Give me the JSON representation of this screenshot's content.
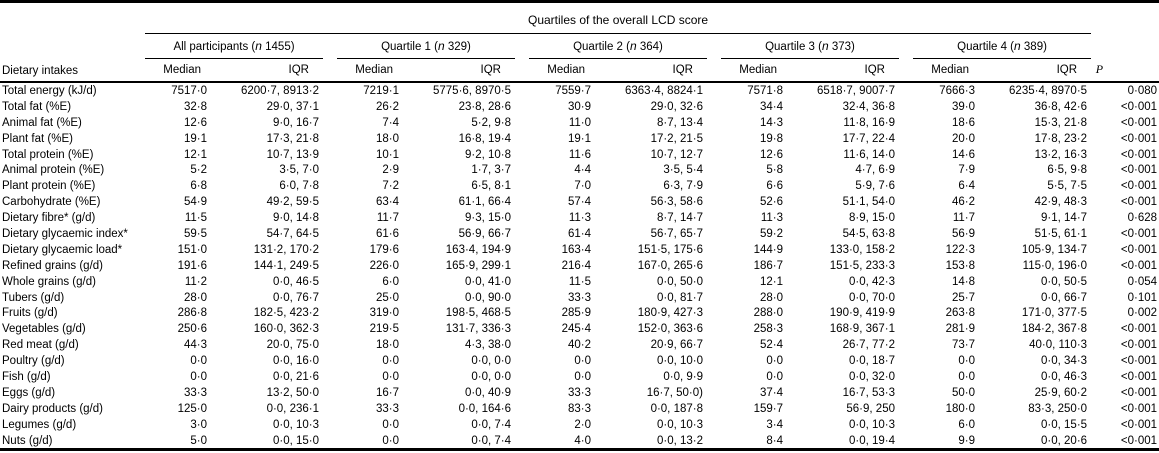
{
  "page": {
    "background": "#ffffff",
    "text_color": "#000000",
    "rule_color": "#000000"
  },
  "table": {
    "spanning_header": "Quartiles of the overall LCD score",
    "corner_header": "Dietary intakes",
    "subheader_median": "Median",
    "subheader_iqr": "IQR",
    "p_header": "P",
    "groups": [
      {
        "pre": "All participants (",
        "n": "n",
        "post": " 1455)"
      },
      {
        "pre": "Quartile 1 (",
        "n": "n",
        "post": " 329)"
      },
      {
        "pre": "Quartile 2 (",
        "n": "n",
        "post": " 364)"
      },
      {
        "pre": "Quartile 3 (",
        "n": "n",
        "post": " 373)"
      },
      {
        "pre": "Quartile 4 (",
        "n": "n",
        "post": " 389)"
      }
    ],
    "rows": [
      {
        "label": "Total energy (kJ/d)",
        "values": [
          "7517·0",
          "6200·7, 8913·2",
          "7219·1",
          "5775·6, 8970·5",
          "7559·7",
          "6363·4, 8824·1",
          "7571·8",
          "6518·7, 9007·7",
          "7666·3",
          "6235·4, 8970·5"
        ],
        "p": "0·080"
      },
      {
        "label": "Total fat (%E)",
        "values": [
          "32·8",
          "29·0, 37·1",
          "26·2",
          "23·8, 28·6",
          "30·9",
          "29·0, 32·6",
          "34·4",
          "32·4, 36·8",
          "39·0",
          "36·8, 42·6"
        ],
        "p": "<0·001"
      },
      {
        "label": "Animal fat (%E)",
        "values": [
          "12·6",
          "9·0, 16·7",
          "7·4",
          "5·2, 9·8",
          "11·0",
          "8·7, 13·4",
          "14·3",
          "11·8, 16·9",
          "18·6",
          "15·3, 21·8"
        ],
        "p": "<0·001"
      },
      {
        "label": "Plant fat (%E)",
        "values": [
          "19·1",
          "17·3, 21·8",
          "18·0",
          "16·8, 19·4",
          "19·1",
          "17·2, 21·5",
          "19·8",
          "17·7, 22·4",
          "20·0",
          "17·8, 23·2"
        ],
        "p": "<0·001"
      },
      {
        "label": "Total protein (%E)",
        "values": [
          "12·1",
          "10·7, 13·9",
          "10·1",
          "9·2, 10·8",
          "11·6",
          "10·7, 12·7",
          "12·6",
          "11·6, 14·0",
          "14·6",
          "13·2, 16·3"
        ],
        "p": "<0·001"
      },
      {
        "label": "Animal protein (%E)",
        "values": [
          "5·2",
          "3·5, 7·0",
          "2·9",
          "1·7, 3·7",
          "4·4",
          "3·5, 5·4",
          "5·8",
          "4·7, 6·9",
          "7·9",
          "6·5, 9·8"
        ],
        "p": "<0·001"
      },
      {
        "label": "Plant protein (%E)",
        "values": [
          "6·8",
          "6·0, 7·8",
          "7·2",
          "6·5, 8·1",
          "7·0",
          "6·3, 7·9",
          "6·6",
          "5·9, 7·6",
          "6·4",
          "5·5, 7·5"
        ],
        "p": "<0·001"
      },
      {
        "label": "Carbohydrate (%E)",
        "values": [
          "54·9",
          "49·2, 59·5",
          "63·4",
          "61·1, 66·4",
          "57·4",
          "56·3, 58·6",
          "52·6",
          "51·1, 54·0",
          "46·2",
          "42·9, 48·3"
        ],
        "p": "<0·001"
      },
      {
        "label": "Dietary fibre* (g/d)",
        "values": [
          "11·5",
          "9·0, 14·8",
          "11·7",
          "9·3, 15·0",
          "11·3",
          "8·7, 14·7",
          "11·3",
          "8·9, 15·0",
          "11·7",
          "9·1, 14·7"
        ],
        "p": "0·628"
      },
      {
        "label": "Dietary glycaemic index*",
        "values": [
          "59·5",
          "54·7, 64·5",
          "61·6",
          "56·9, 66·7",
          "61·4",
          "56·7, 65·7",
          "59·2",
          "54·5, 63·8",
          "56·9",
          "51·5, 61·1"
        ],
        "p": "<0·001"
      },
      {
        "label": "Dietary glycaemic load*",
        "values": [
          "151·0",
          "131·2, 170·2",
          "179·6",
          "163·4, 194·9",
          "163·4",
          "151·5, 175·6",
          "144·9",
          "133·0, 158·2",
          "122·3",
          "105·9, 134·7"
        ],
        "p": "<0·001"
      },
      {
        "label": "Refined grains (g/d)",
        "values": [
          "191·6",
          "144·1, 249·5",
          "226·0",
          "165·9, 299·1",
          "216·4",
          "167·0, 265·6",
          "186·7",
          "151·5, 233·3",
          "153·8",
          "115·0, 196·0"
        ],
        "p": "<0·001"
      },
      {
        "label": "Whole grains (g/d)",
        "values": [
          "11·2",
          "0·0, 46·5",
          "6·0",
          "0·0, 41·0",
          "11·5",
          "0·0, 50·0",
          "12·1",
          "0·0, 42·3",
          "14·8",
          "0·0, 50·5"
        ],
        "p": "0·054"
      },
      {
        "label": "Tubers (g/d)",
        "values": [
          "28·0",
          "0·0, 76·7",
          "25·0",
          "0·0, 90·0",
          "33·3",
          "0·0, 81·7",
          "28·0",
          "0·0, 70·0",
          "25·7",
          "0·0, 66·7"
        ],
        "p": "0·101"
      },
      {
        "label": "Fruits (g/d)",
        "values": [
          "286·8",
          "182·5, 423·2",
          "319·0",
          "198·5, 468·5",
          "285·9",
          "180·9, 427·3",
          "288·0",
          "190·9, 419·9",
          "263·8",
          "171·0, 377·5"
        ],
        "p": "0·002"
      },
      {
        "label": "Vegetables (g/d)",
        "values": [
          "250·6",
          "160·0, 362·3",
          "219·5",
          "131·7, 336·3",
          "245·4",
          "152·0, 363·6",
          "258·3",
          "168·9, 367·1",
          "281·9",
          "184·2, 367·8"
        ],
        "p": "<0·001"
      },
      {
        "label": "Red meat (g/d)",
        "values": [
          "44·3",
          "20·0, 75·0",
          "18·0",
          "4·3, 38·0",
          "40·2",
          "20·9, 66·7",
          "52·4",
          "26·7, 77·2",
          "73·7",
          "40·0, 110·3"
        ],
        "p": "<0·001"
      },
      {
        "label": "Poultry (g/d)",
        "values": [
          "0·0",
          "0·0, 16·0",
          "0·0",
          "0·0, 0·0",
          "0·0",
          "0·0, 10·0",
          "0·0",
          "0·0, 18·7",
          "0·0",
          "0·0, 34·3"
        ],
        "p": "<0·001"
      },
      {
        "label": "Fish (g/d)",
        "values": [
          "0·0",
          "0·0, 21·6",
          "0·0",
          "0·0, 0·0",
          "0·0",
          "0·0, 9·9",
          "0·0",
          "0·0, 32·0",
          "0·0",
          "0·0, 46·3"
        ],
        "p": "<0·001"
      },
      {
        "label": "Eggs (g/d)",
        "values": [
          "33·3",
          "13·2, 50·0",
          "16·7",
          "0·0, 40·9",
          "33·3",
          "16·7, 50·0)",
          "37·4",
          "16·7, 53·3",
          "50·0",
          "25·9, 60·2"
        ],
        "p": "<0·001"
      },
      {
        "label": "Dairy products (g/d)",
        "values": [
          "125·0",
          "0·0, 236·1",
          "33·3",
          "0·0, 164·6",
          "83·3",
          "0·0, 187·8",
          "159·7",
          "56·9, 250",
          "180·0",
          "83·3, 250·0"
        ],
        "p": "<0·001"
      },
      {
        "label": "Legumes (g/d)",
        "values": [
          "3·0",
          "0·0, 10·3",
          "0·0",
          "0·0, 7·4",
          "2·0",
          "0·0, 10·3",
          "3·4",
          "0·0, 10·3",
          "6·0",
          "0·0, 15·5"
        ],
        "p": "<0·001"
      },
      {
        "label": "Nuts (g/d)",
        "values": [
          "5·0",
          "0·0, 15·0",
          "0·0",
          "0·0, 7·4",
          "4·0",
          "0·0, 13·2",
          "8·4",
          "0·0, 19·4",
          "9·9",
          "0·0, 20·6"
        ],
        "p": "<0·001"
      }
    ]
  }
}
